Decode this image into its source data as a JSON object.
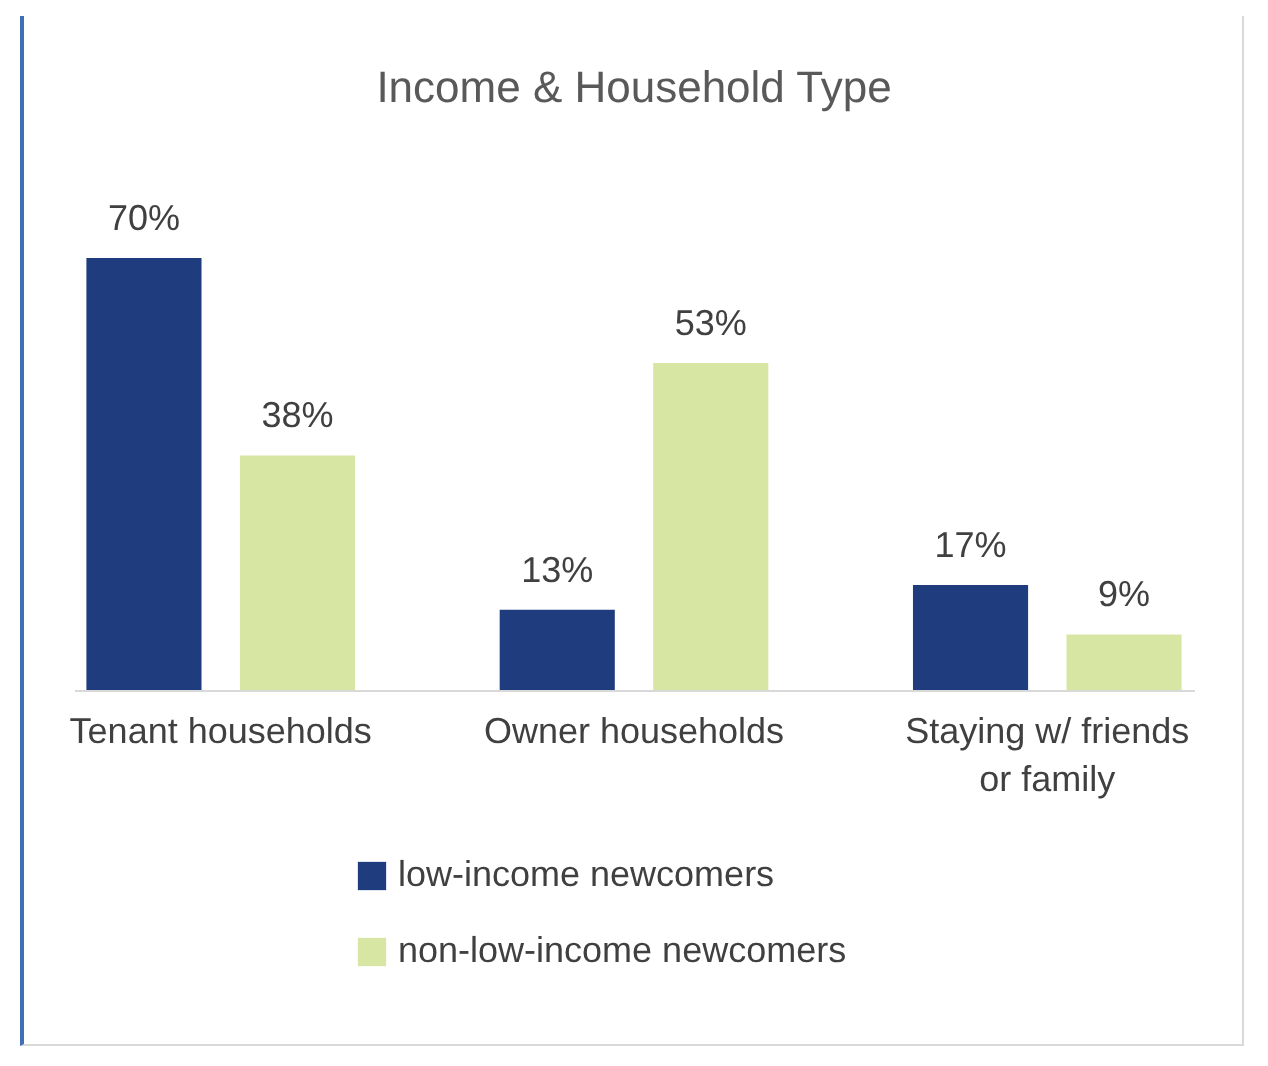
{
  "chart_data": {
    "type": "bar",
    "title": "Income & Household Type",
    "categories": [
      "Tenant households",
      "Owner households",
      "Staying w/ friends or family"
    ],
    "series": [
      {
        "name": "low-income newcomers",
        "color": "#1f3c7e",
        "values": [
          70,
          13,
          17
        ],
        "value_labels": [
          "70%",
          "13%",
          "17%"
        ]
      },
      {
        "name": "non-low-income newcomers",
        "color": "#d8e6a3",
        "values": [
          38,
          53,
          9
        ],
        "value_labels": [
          "38%",
          "53%",
          "9%"
        ]
      }
    ],
    "legend": "bottom",
    "tick_labels": "x"
  }
}
